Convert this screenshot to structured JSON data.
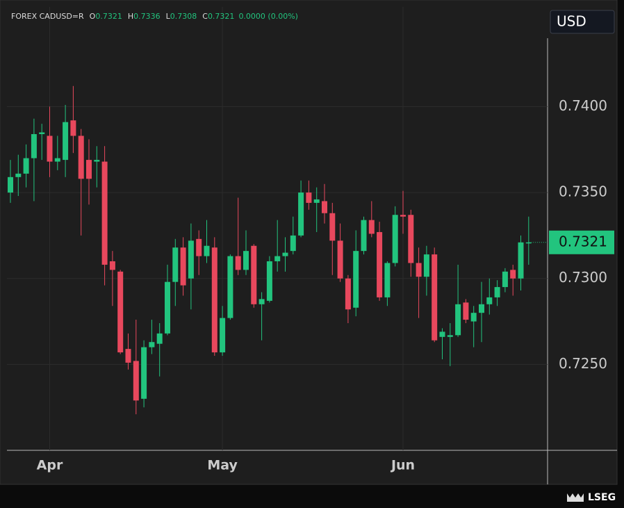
{
  "header": {
    "symbol": "FOREX CADUSD=R",
    "fields": [
      {
        "label": "O",
        "value": "0.7321"
      },
      {
        "label": "H",
        "value": "0.7336"
      },
      {
        "label": "L",
        "value": "0.7308"
      },
      {
        "label": "C",
        "value": "0.7321"
      }
    ],
    "change": "0.0000 (0.00%)"
  },
  "currency": "USD",
  "logo": "LSEG",
  "chart_data": {
    "type": "candlestick",
    "categories": [
      null,
      null,
      null,
      null,
      null,
      "Apr",
      null,
      null,
      null,
      null,
      null,
      null,
      null,
      null,
      null,
      null,
      null,
      null,
      null,
      null,
      null,
      null,
      null,
      null,
      null,
      null,
      null,
      "May",
      null,
      null,
      null,
      null,
      null,
      null,
      null,
      null,
      null,
      null,
      null,
      null,
      null,
      null,
      null,
      null,
      null,
      null,
      null,
      null,
      null,
      null,
      "Jun",
      null,
      null,
      null,
      null,
      null,
      null,
      null,
      null,
      null,
      null,
      null,
      null,
      null,
      null,
      null,
      null
    ],
    "open": [
      0.735,
      0.7359,
      0.7361,
      0.737,
      0.7384,
      0.7383,
      0.7368,
      0.7369,
      0.7392,
      0.7383,
      0.7369,
      0.7368,
      0.7368,
      0.731,
      0.7304,
      0.7259,
      0.7252,
      0.723,
      0.726,
      0.7262,
      0.7268,
      0.7298,
      0.7318,
      0.73,
      0.7323,
      0.7313,
      0.7318,
      0.7257,
      0.7277,
      0.7313,
      0.7305,
      0.7319,
      0.7285,
      0.7287,
      0.731,
      0.7313,
      0.7316,
      0.7325,
      0.735,
      0.7344,
      0.7345,
      0.7338,
      0.7322,
      0.73,
      0.7283,
      0.7316,
      0.7334,
      0.7327,
      0.7289,
      0.7309,
      0.7337,
      0.7337,
      0.7309,
      0.7301,
      0.7314,
      0.7266,
      0.7266,
      0.7267,
      0.7286,
      0.7275,
      0.728,
      0.7285,
      0.7289,
      0.7295,
      0.7305,
      0.73,
      0.7321
    ],
    "high": [
      0.7369,
      0.7372,
      0.7378,
      0.7393,
      0.739,
      0.74,
      0.7383,
      0.7401,
      0.7412,
      0.7387,
      0.7381,
      0.7377,
      0.7377,
      0.7316,
      0.7305,
      0.7268,
      0.7276,
      0.7264,
      0.7276,
      0.7274,
      0.7308,
      0.7323,
      0.7324,
      0.7332,
      0.7328,
      0.7334,
      0.7324,
      0.7284,
      0.7314,
      0.7347,
      0.7328,
      0.732,
      0.7292,
      0.7313,
      0.7334,
      0.7324,
      0.7336,
      0.7357,
      0.7357,
      0.7353,
      0.7355,
      0.7344,
      0.7332,
      0.7302,
      0.7328,
      0.7336,
      0.7345,
      0.7333,
      0.731,
      0.7342,
      0.7351,
      0.734,
      0.7318,
      0.7319,
      0.7318,
      0.7271,
      0.7274,
      0.7308,
      0.7288,
      0.7284,
      0.7298,
      0.73,
      0.7299,
      0.7306,
      0.7308,
      0.7325,
      0.7336
    ],
    "low": [
      0.7344,
      0.7348,
      0.7353,
      0.7345,
      0.7369,
      0.7359,
      0.7363,
      0.7359,
      0.7373,
      0.7325,
      0.7343,
      0.7353,
      0.7296,
      0.7284,
      0.7256,
      0.7247,
      0.7221,
      0.7225,
      0.7256,
      0.7243,
      0.7267,
      0.7284,
      0.729,
      0.7282,
      0.7302,
      0.7309,
      0.7255,
      0.7255,
      0.7276,
      0.7302,
      0.7302,
      0.7283,
      0.7264,
      0.7286,
      0.7304,
      0.7304,
      0.7314,
      0.7324,
      0.734,
      0.7327,
      0.7332,
      0.7302,
      0.7298,
      0.7274,
      0.7278,
      0.7314,
      0.7324,
      0.7287,
      0.7284,
      0.7307,
      0.7326,
      0.7301,
      0.7277,
      0.729,
      0.7263,
      0.7253,
      0.7249,
      0.7266,
      0.7274,
      0.726,
      0.7263,
      0.7279,
      0.7284,
      0.7292,
      0.729,
      0.7293,
      0.7308
    ],
    "close": [
      0.7359,
      0.7361,
      0.737,
      0.7384,
      0.7385,
      0.7368,
      0.737,
      0.7391,
      0.7383,
      0.7358,
      0.7358,
      0.7369,
      0.7308,
      0.7305,
      0.7257,
      0.7251,
      0.7229,
      0.726,
      0.7263,
      0.7268,
      0.7298,
      0.7318,
      0.7296,
      0.7322,
      0.7313,
      0.7319,
      0.7257,
      0.7277,
      0.7313,
      0.7305,
      0.7316,
      0.7285,
      0.7288,
      0.731,
      0.7313,
      0.7315,
      0.7325,
      0.735,
      0.7344,
      0.7346,
      0.7338,
      0.7322,
      0.73,
      0.7282,
      0.7316,
      0.7334,
      0.7326,
      0.7289,
      0.7309,
      0.7337,
      0.7336,
      0.7309,
      0.7301,
      0.7314,
      0.7264,
      0.7269,
      0.7267,
      0.7285,
      0.7276,
      0.728,
      0.7285,
      0.7289,
      0.7295,
      0.7304,
      0.73,
      0.7321,
      0.7321
    ],
    "up_color": "#22c47e",
    "down_color": "#e8485d",
    "ylim": [
      0.72,
      0.7458
    ],
    "yticks": [
      {
        "value": 0.725,
        "label": "0.7250"
      },
      {
        "value": 0.73,
        "label": "0.7300"
      },
      {
        "value": 0.735,
        "label": "0.7350"
      },
      {
        "value": 0.74,
        "label": "0.7400"
      }
    ],
    "last_price": {
      "value": 0.7321,
      "label": "0.7321"
    },
    "grid": true
  }
}
